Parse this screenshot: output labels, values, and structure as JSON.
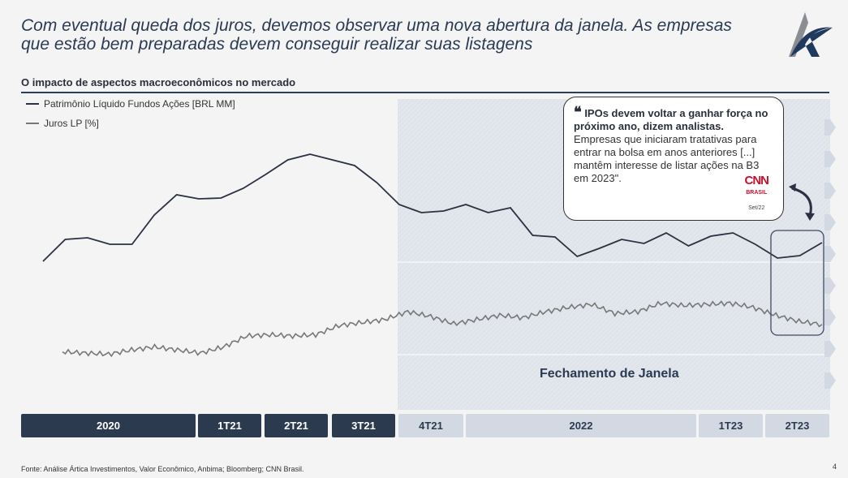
{
  "header": {
    "title": "Com eventual queda dos juros, devemos observar uma nova abertura da janela. As empresas que estão bem preparadas devem conseguir realizar suas listagens",
    "subtitle": "O impacto de aspectos macroeconômicos no mercado"
  },
  "chart_data": {
    "type": "line",
    "title": "O impacto de aspectos macroeconômicos no mercado",
    "xlabel": "",
    "ylabel": "",
    "grid": false,
    "legend": "top-left",
    "series": [
      {
        "name": "Patrimônio Líquido Fundos Ações [BRL MM]",
        "color": "#2a3142",
        "values": [
          18,
          45,
          47,
          39,
          39,
          75,
          100,
          95,
          96,
          108,
          125,
          143,
          150,
          143,
          136,
          115,
          88,
          78,
          80,
          88,
          78,
          84,
          50,
          48,
          24,
          34,
          45,
          40,
          53,
          37,
          49,
          53,
          39,
          22,
          25,
          41
        ]
      },
      {
        "name": "Juros LP [%]",
        "color": "#777777",
        "values": [
          22,
          20,
          18,
          25,
          30,
          25,
          20,
          30,
          48,
          50,
          48,
          50,
          65,
          70,
          75,
          88,
          80,
          68,
          75,
          82,
          78,
          88,
          95,
          100,
          85,
          88,
          102,
          98,
          100,
          102,
          95,
          82,
          72,
          67
        ]
      }
    ],
    "annotation": "Fechamento de Janela",
    "periods": [
      {
        "label": "2020",
        "shaded": false
      },
      {
        "label": "1T21",
        "shaded": false
      },
      {
        "label": "2T21",
        "shaded": false
      },
      {
        "label": "3T21",
        "shaded": false
      },
      {
        "label": "4T21",
        "shaded": true
      },
      {
        "label": "2022",
        "shaded": true
      },
      {
        "label": "1T23",
        "shaded": true
      },
      {
        "label": "2T23",
        "shaded": true
      }
    ]
  },
  "quote": {
    "headline": "IPOs devem voltar a ganhar força no próximo ano, dizem analistas.",
    "body": "Empresas que iniciaram tratativas para entrar na bolsa em anos anteriores [...] mantêm interesse de listar ações na B3 em 2023\".",
    "source_logo": "CNN",
    "source_logo_sub": "BRASIL",
    "date": "Set/22"
  },
  "footer": {
    "source": "Fonte: Análise Ártica Investimentos, Valor Econômico, Anbima; Bloomberg; CNN Brasil.",
    "page": "4"
  }
}
